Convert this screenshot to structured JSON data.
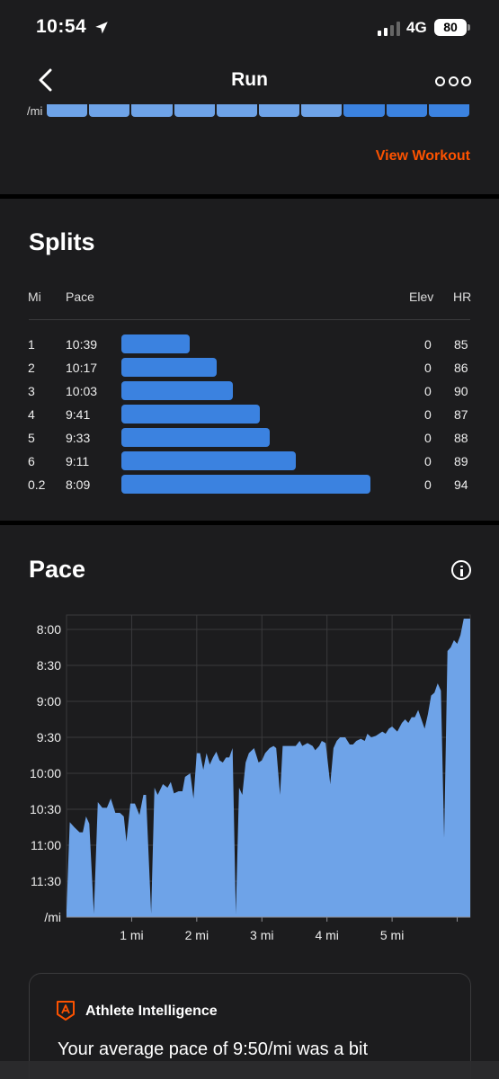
{
  "status_bar": {
    "time": "10:54",
    "network": "4G",
    "battery": "80"
  },
  "nav": {
    "title": "Run",
    "back_icon": "chevron-left-icon",
    "more_icon": "more-horizontal-icon"
  },
  "top_card": {
    "axis_unit": "/mi",
    "view_workout_label": "View Workout"
  },
  "splits": {
    "title": "Splits",
    "headers": {
      "mi": "Mi",
      "pace": "Pace",
      "elev": "Elev",
      "hr": "HR"
    },
    "rows": [
      {
        "mi": "1",
        "pace": "10:39",
        "elev": "0",
        "hr": "85"
      },
      {
        "mi": "2",
        "pace": "10:17",
        "elev": "0",
        "hr": "86"
      },
      {
        "mi": "3",
        "pace": "10:03",
        "elev": "0",
        "hr": "90"
      },
      {
        "mi": "4",
        "pace": "9:41",
        "elev": "0",
        "hr": "87"
      },
      {
        "mi": "5",
        "pace": "9:33",
        "elev": "0",
        "hr": "88"
      },
      {
        "mi": "6",
        "pace": "9:11",
        "elev": "0",
        "hr": "89"
      },
      {
        "mi": "0.2",
        "pace": "8:09",
        "elev": "0",
        "hr": "94"
      }
    ]
  },
  "pace_section": {
    "title": "Pace",
    "info_icon": "info-icon"
  },
  "chart_data": {
    "type": "area",
    "title": "Pace",
    "xlabel": "",
    "ylabel": "",
    "y_axis_inverted": true,
    "y_unit": "/mi",
    "yticks": [
      "8:00",
      "8:30",
      "9:00",
      "9:30",
      "10:00",
      "10:30",
      "11:00",
      "11:30",
      "/mi"
    ],
    "yticks_minutes": [
      8.0,
      8.5,
      9.0,
      9.5,
      10.0,
      10.5,
      11.0,
      11.5,
      12.0
    ],
    "xticks": [
      "1 mi",
      "2 mi",
      "3 mi",
      "4 mi",
      "5 mi"
    ],
    "xticks_values": [
      1,
      2,
      3,
      4,
      5
    ],
    "xlim": [
      0,
      6.2
    ],
    "ylim_minutes": [
      7.8,
      12.0
    ],
    "grid": true,
    "fill_color": "#6ea3e8",
    "series": [
      {
        "x_miles": [
          0.0,
          0.05,
          0.12,
          0.2,
          0.25,
          0.3,
          0.35,
          0.42,
          0.48,
          0.55,
          0.62,
          0.68,
          0.75,
          0.82,
          0.88,
          0.92,
          0.98,
          1.05,
          1.12,
          1.18,
          1.22,
          1.3,
          1.35,
          1.4,
          1.48,
          1.55,
          1.6,
          1.65,
          1.72,
          1.78,
          1.82,
          1.9,
          1.95,
          2.0,
          2.05,
          2.1,
          2.15,
          2.2,
          2.25,
          2.3,
          2.35,
          2.4,
          2.45,
          2.5,
          2.55,
          2.6,
          2.65,
          2.7,
          2.75,
          2.8,
          2.88,
          2.95,
          3.0,
          3.05,
          3.12,
          3.18,
          3.22,
          3.28,
          3.32,
          3.4,
          3.45,
          3.52,
          3.58,
          3.62,
          3.7,
          3.78,
          3.82,
          3.88,
          3.92,
          3.98,
          4.05,
          4.1,
          4.15,
          4.2,
          4.28,
          4.35,
          4.4,
          4.45,
          4.52,
          4.58,
          4.62,
          4.68,
          4.75,
          4.8,
          4.85,
          4.9,
          4.95,
          5.0,
          5.08,
          5.15,
          5.2,
          5.25,
          5.3,
          5.35,
          5.4,
          5.45,
          5.5,
          5.55,
          5.6,
          5.65,
          5.7,
          5.75,
          5.8,
          5.85,
          5.9,
          5.95,
          6.0,
          6.05,
          6.1,
          6.15,
          6.2
        ],
        "y_minutes": [
          11.9,
          10.68,
          10.75,
          10.82,
          10.82,
          10.6,
          10.7,
          11.95,
          10.4,
          10.48,
          10.48,
          10.35,
          10.55,
          10.55,
          10.6,
          10.95,
          10.42,
          10.42,
          10.58,
          10.3,
          10.3,
          11.95,
          10.2,
          10.3,
          10.15,
          10.2,
          10.12,
          10.28,
          10.25,
          10.25,
          10.05,
          10.0,
          10.35,
          9.72,
          9.72,
          9.95,
          9.72,
          9.88,
          9.78,
          9.7,
          9.82,
          9.85,
          9.78,
          9.78,
          9.65,
          11.95,
          10.2,
          10.3,
          9.85,
          9.72,
          9.65,
          9.85,
          9.82,
          9.72,
          9.65,
          9.62,
          9.65,
          10.3,
          9.62,
          9.62,
          9.62,
          9.62,
          9.55,
          9.62,
          9.58,
          9.62,
          9.68,
          9.62,
          9.55,
          9.58,
          10.15,
          9.65,
          9.55,
          9.5,
          9.5,
          9.6,
          9.6,
          9.55,
          9.52,
          9.55,
          9.45,
          9.5,
          9.48,
          9.45,
          9.42,
          9.45,
          9.38,
          9.35,
          9.42,
          9.3,
          9.25,
          9.3,
          9.22,
          9.22,
          9.12,
          9.25,
          9.38,
          9.18,
          8.92,
          8.88,
          8.75,
          8.85,
          10.9,
          8.3,
          8.25,
          8.15,
          8.2,
          8.08,
          7.85,
          7.85,
          7.85
        ]
      }
    ]
  },
  "athlete_intelligence": {
    "title": "Athlete Intelligence",
    "icon": "athlete-intelligence-icon",
    "text": "Your average pace of 9:50/mi was a bit"
  }
}
